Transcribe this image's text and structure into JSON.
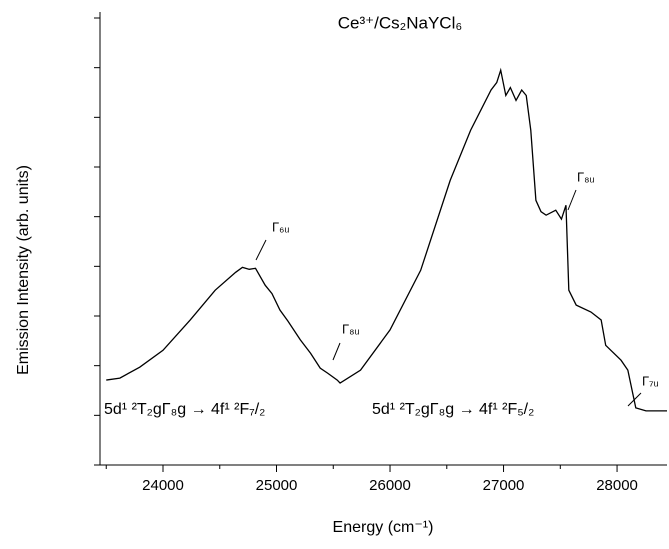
{
  "chart_data": {
    "type": "line",
    "title": "Ce³⁺/Cs₂NaYCl₆",
    "x_label": "Energy (cm⁻¹)",
    "y_label": "Emission Intensity (arb. units)",
    "xlim": [
      23445,
      28440
    ],
    "ylim": [
      0,
      9
    ],
    "xticks": [
      24000,
      25000,
      26000,
      27000,
      28000
    ],
    "xminor_ticks": [
      23500,
      24500,
      25500,
      26500,
      27500
    ],
    "yticks": [
      0,
      1,
      2,
      3,
      4,
      5,
      6,
      7,
      8,
      9
    ],
    "ytick_labels_shown": false,
    "color": "#000000",
    "x": [
      23500,
      23620,
      23795,
      24000,
      24240,
      24460,
      24640,
      24700,
      24760,
      24815,
      24900,
      24960,
      25030,
      25100,
      25210,
      25300,
      25385,
      25450,
      25535,
      25560,
      25740,
      26000,
      26270,
      26530,
      26710,
      26890,
      26940,
      26975,
      27020,
      27060,
      27110,
      27160,
      27200,
      27240,
      27285,
      27330,
      27375,
      27460,
      27510,
      27550,
      27575,
      27640,
      27770,
      27860,
      27900,
      28035,
      28095,
      28165,
      28255,
      28440
    ],
    "values": [
      1.71,
      1.75,
      1.97,
      2.31,
      2.92,
      3.52,
      3.88,
      3.98,
      3.94,
      3.96,
      3.62,
      3.45,
      3.12,
      2.9,
      2.52,
      2.25,
      1.95,
      1.85,
      1.71,
      1.65,
      1.91,
      2.72,
      3.92,
      5.73,
      6.74,
      7.55,
      7.7,
      7.95,
      7.44,
      7.6,
      7.34,
      7.55,
      7.44,
      6.74,
      5.33,
      5.1,
      5.03,
      5.13,
      4.95,
      5.23,
      3.52,
      3.22,
      3.08,
      2.92,
      2.41,
      2.11,
      1.91,
      1.15,
      1.09,
      1.09
    ],
    "annotations": [
      "Γ₆ᵤ",
      "Γ₈ᵤ",
      "Γ₈ᵤ",
      "Γ₇ᵤ"
    ],
    "transitions": [
      "5d¹ ²T₂gΓ₈g → 4f¹ ²F₇/₂",
      "5d¹ ²T₂gΓ₈g → 4f¹ ²F₅/₂"
    ]
  }
}
